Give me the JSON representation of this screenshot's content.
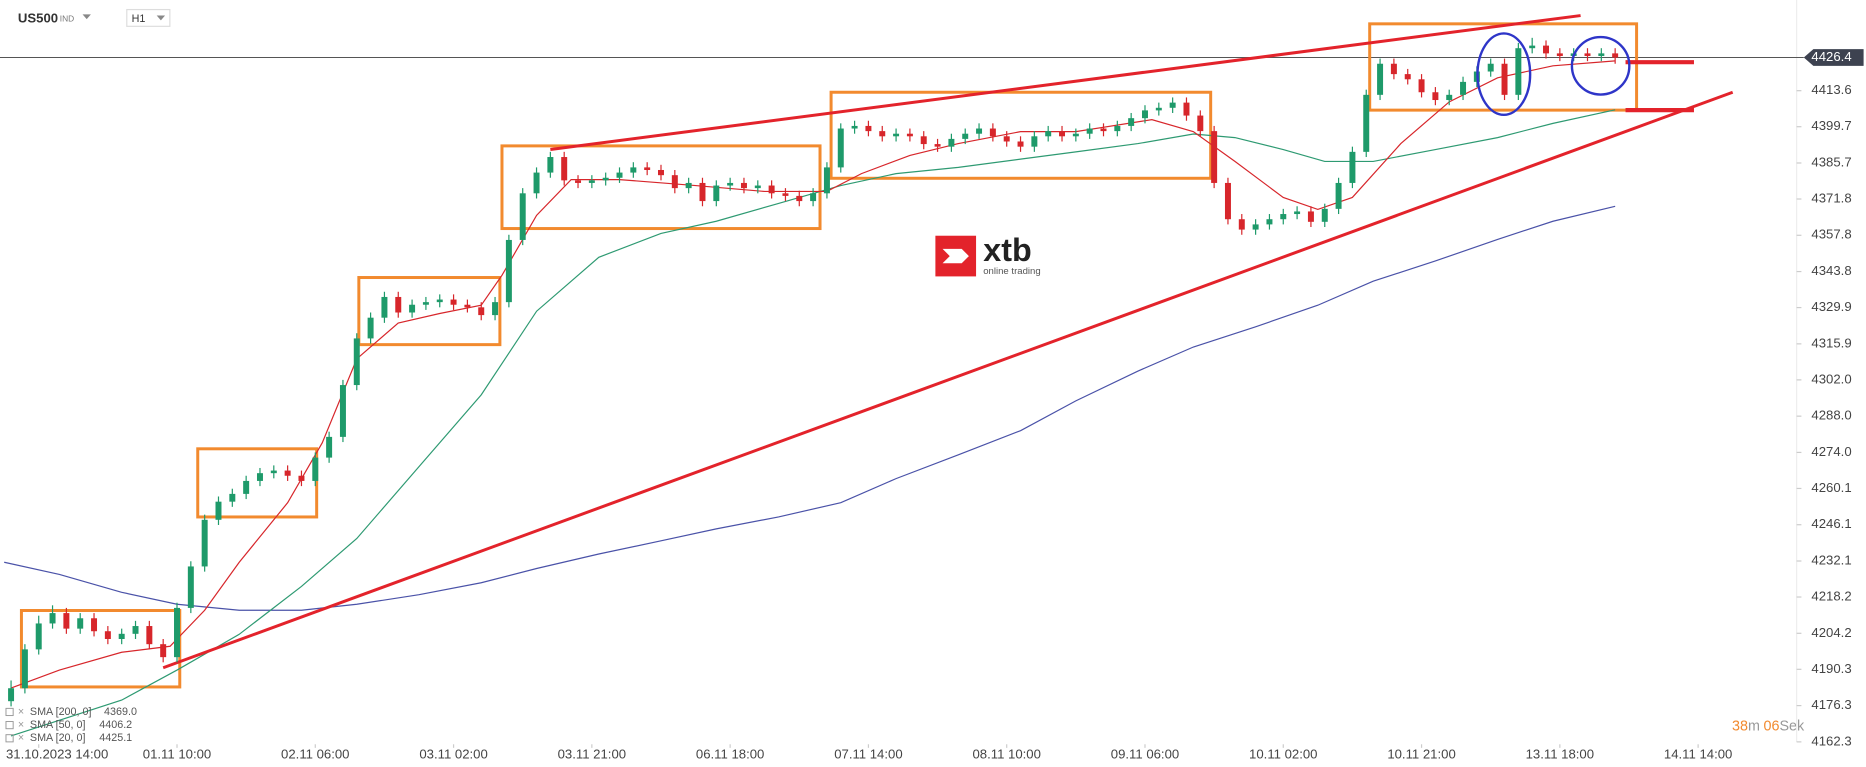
{
  "chart_data": {
    "type": "candlestick",
    "symbol": "US500",
    "market": "IND",
    "interval": "H1",
    "watermark": {
      "brand": "xtb",
      "tagline": "online trading"
    },
    "timer": [
      "38",
      "m",
      "06",
      "Sek"
    ],
    "xlim": [
      -5.6,
      253.9
    ],
    "ylim": [
      4162.3,
      4448.6
    ],
    "xticks": [
      {
        "value": 0,
        "label": "31.10.2023 14:00"
      },
      {
        "value": 20,
        "label": "01.11 10:00"
      },
      {
        "value": 40,
        "label": "02.11 06:00"
      },
      {
        "value": 60,
        "label": "03.11 02:00"
      },
      {
        "value": 80,
        "label": "03.11 21:00"
      },
      {
        "value": 100,
        "label": "06.11 18:00"
      },
      {
        "value": 120,
        "label": "07.11 14:00"
      },
      {
        "value": 140,
        "label": "08.11 10:00"
      },
      {
        "value": 160,
        "label": "09.11 06:00"
      },
      {
        "value": 180,
        "label": "10.11 02:00"
      },
      {
        "value": 200,
        "label": "10.11 21:00"
      },
      {
        "value": 220,
        "label": "13.11 18:00"
      },
      {
        "value": 240,
        "label": "14.11 14:00"
      }
    ],
    "yticks": [
      4162.3,
      4176.3,
      4190.3,
      4204.2,
      4218.2,
      4232.1,
      4246.1,
      4260.1,
      {
        "value": 4274,
        "label": "4274.0"
      },
      {
        "value": 4288,
        "label": "4288.0"
      },
      {
        "value": 4302,
        "label": "4302.0"
      },
      4315.9,
      4329.9,
      4343.8,
      4357.8,
      4371.8,
      4385.7,
      4399.7,
      4413.6
    ],
    "price_line": 4426.4,
    "up_color": "#1e9a6a",
    "down_color": "#d7262b",
    "candles": {
      "x": [
        -4,
        -2,
        0,
        2,
        4,
        6,
        8,
        10,
        12,
        14,
        16,
        18,
        20,
        22,
        24,
        26,
        28,
        30,
        32,
        34,
        36,
        38,
        40,
        42,
        44,
        46,
        48,
        50,
        52,
        54,
        56,
        58,
        60,
        62,
        64,
        66,
        68,
        70,
        72,
        74,
        76,
        78,
        80,
        82,
        84,
        86,
        88,
        90,
        92,
        94,
        96,
        98,
        100,
        102,
        104,
        106,
        108,
        110,
        112,
        114,
        116,
        118,
        120,
        122,
        124,
        126,
        128,
        130,
        132,
        134,
        136,
        138,
        140,
        142,
        144,
        146,
        148,
        150,
        152,
        154,
        156,
        158,
        160,
        162,
        164,
        166,
        168,
        170,
        172,
        174,
        176,
        178,
        180,
        182,
        184,
        186,
        188,
        190,
        192,
        194,
        196,
        198,
        200,
        202,
        204,
        206,
        208,
        210,
        212,
        214,
        216,
        218,
        220,
        222,
        224,
        226,
        228
      ],
      "ohlc": [
        [
          4178,
          4186,
          4176,
          4183
        ],
        [
          4183,
          4200,
          4181,
          4198
        ],
        [
          4198,
          4211,
          4196,
          4208
        ],
        [
          4208,
          4215,
          4206,
          4212
        ],
        [
          4212,
          4214,
          4204,
          4206
        ],
        [
          4206,
          4212,
          4204,
          4210
        ],
        [
          4210,
          4212,
          4203,
          4205
        ],
        [
          4205,
          4207,
          4200,
          4202
        ],
        [
          4202,
          4206,
          4200,
          4204
        ],
        [
          4204,
          4209,
          4202,
          4207
        ],
        [
          4207,
          4209,
          4198,
          4200
        ],
        [
          4200,
          4202,
          4193,
          4195
        ],
        [
          4195,
          4216,
          4193,
          4214
        ],
        [
          4214,
          4232,
          4212,
          4230
        ],
        [
          4230,
          4250,
          4228,
          4248
        ],
        [
          4248,
          4257,
          4246,
          4255
        ],
        [
          4255,
          4260,
          4253,
          4258
        ],
        [
          4258,
          4265,
          4256,
          4263
        ],
        [
          4263,
          4268,
          4261,
          4266
        ],
        [
          4266,
          4269,
          4264,
          4267
        ],
        [
          4267,
          4269,
          4263,
          4265
        ],
        [
          4265,
          4267,
          4261,
          4263
        ],
        [
          4263,
          4274,
          4261,
          4272
        ],
        [
          4272,
          4282,
          4270,
          4280
        ],
        [
          4280,
          4302,
          4278,
          4300
        ],
        [
          4300,
          4320,
          4298,
          4318
        ],
        [
          4318,
          4328,
          4316,
          4326
        ],
        [
          4326,
          4336,
          4324,
          4334
        ],
        [
          4334,
          4336,
          4326,
          4328
        ],
        [
          4328,
          4333,
          4326,
          4331
        ],
        [
          4331,
          4334,
          4329,
          4332
        ],
        [
          4332,
          4335,
          4330,
          4333
        ],
        [
          4333,
          4335,
          4329,
          4331
        ],
        [
          4331,
          4333,
          4328,
          4330
        ],
        [
          4330,
          4332,
          4325,
          4327
        ],
        [
          4327,
          4334,
          4325,
          4332
        ],
        [
          4332,
          4358,
          4330,
          4356
        ],
        [
          4356,
          4376,
          4354,
          4374
        ],
        [
          4374,
          4384,
          4372,
          4382
        ],
        [
          4382,
          4390,
          4380,
          4388
        ],
        [
          4388,
          4390,
          4377,
          4379
        ],
        [
          4379,
          4381,
          4376,
          4378
        ],
        [
          4378,
          4381,
          4376,
          4379
        ],
        [
          4379,
          4382,
          4377,
          4380
        ],
        [
          4380,
          4384,
          4378,
          4382
        ],
        [
          4382,
          4386,
          4380,
          4384
        ],
        [
          4384,
          4386,
          4381,
          4383
        ],
        [
          4383,
          4385,
          4379,
          4381
        ],
        [
          4381,
          4383,
          4374,
          4376
        ],
        [
          4376,
          4380,
          4374,
          4378
        ],
        [
          4378,
          4380,
          4369,
          4371
        ],
        [
          4371,
          4379,
          4369,
          4377
        ],
        [
          4377,
          4380,
          4375,
          4378
        ],
        [
          4378,
          4380,
          4374,
          4376
        ],
        [
          4376,
          4379,
          4374,
          4377
        ],
        [
          4377,
          4379,
          4372,
          4374
        ],
        [
          4374,
          4376,
          4371,
          4373
        ],
        [
          4373,
          4375,
          4369,
          4371
        ],
        [
          4371,
          4376,
          4369,
          4374
        ],
        [
          4374,
          4386,
          4372,
          4384
        ],
        [
          4384,
          4401,
          4382,
          4399
        ],
        [
          4399,
          4402,
          4397,
          4400
        ],
        [
          4400,
          4402,
          4396,
          4398
        ],
        [
          4398,
          4400,
          4394,
          4396
        ],
        [
          4396,
          4399,
          4394,
          4397
        ],
        [
          4397,
          4399,
          4394,
          4396
        ],
        [
          4396,
          4398,
          4391,
          4393
        ],
        [
          4393,
          4395,
          4390,
          4392
        ],
        [
          4392,
          4397,
          4390,
          4395
        ],
        [
          4395,
          4399,
          4393,
          4397
        ],
        [
          4397,
          4401,
          4395,
          4399
        ],
        [
          4399,
          4401,
          4394,
          4396
        ],
        [
          4396,
          4398,
          4392,
          4394
        ],
        [
          4394,
          4396,
          4390,
          4392
        ],
        [
          4392,
          4398,
          4390,
          4396
        ],
        [
          4396,
          4400,
          4394,
          4398
        ],
        [
          4398,
          4400,
          4394,
          4396
        ],
        [
          4396,
          4399,
          4394,
          4397
        ],
        [
          4397,
          4401,
          4395,
          4399
        ],
        [
          4399,
          4401,
          4396,
          4398
        ],
        [
          4398,
          4402,
          4396,
          4400
        ],
        [
          4400,
          4405,
          4398,
          4403
        ],
        [
          4403,
          4408,
          4401,
          4406
        ],
        [
          4406,
          4409,
          4404,
          4407
        ],
        [
          4407,
          4411,
          4405,
          4409
        ],
        [
          4409,
          4411,
          4402,
          4404
        ],
        [
          4404,
          4406,
          4396,
          4398
        ],
        [
          4398,
          4400,
          4376,
          4378
        ],
        [
          4378,
          4380,
          4362,
          4364
        ],
        [
          4364,
          4366,
          4358,
          4360
        ],
        [
          4360,
          4364,
          4358,
          4362
        ],
        [
          4362,
          4366,
          4360,
          4364
        ],
        [
          4364,
          4368,
          4362,
          4366
        ],
        [
          4366,
          4369,
          4364,
          4367
        ],
        [
          4367,
          4369,
          4361,
          4363
        ],
        [
          4363,
          4370,
          4361,
          4368
        ],
        [
          4368,
          4380,
          4366,
          4378
        ],
        [
          4378,
          4392,
          4376,
          4390
        ],
        [
          4390,
          4414,
          4388,
          4412
        ],
        [
          4412,
          4426,
          4410,
          4424
        ],
        [
          4424,
          4426,
          4418,
          4420
        ],
        [
          4420,
          4422,
          4416,
          4418
        ],
        [
          4418,
          4420,
          4411,
          4413
        ],
        [
          4413,
          4415,
          4408,
          4410
        ],
        [
          4410,
          4414,
          4408,
          4412
        ],
        [
          4412,
          4419,
          4410,
          4417
        ],
        [
          4417,
          4423,
          4415,
          4421
        ],
        [
          4421,
          4426,
          4419,
          4424
        ],
        [
          4424,
          4426,
          4410,
          4412
        ],
        [
          4412,
          4432,
          4410,
          4430
        ],
        [
          4430,
          4434,
          4428,
          4431
        ],
        [
          4431,
          4433,
          4426,
          4428
        ],
        [
          4428,
          4430,
          4425,
          4427
        ],
        [
          4427,
          4430,
          4425,
          4428
        ],
        [
          4428,
          4430,
          4425,
          4427
        ],
        [
          4427,
          4430,
          4425,
          4428
        ],
        [
          4428,
          4430,
          4424,
          4426.4
        ]
      ]
    },
    "series": [
      {
        "name": "SMA [200, 0]",
        "color": "#4a52a8",
        "last_label": "4369.0",
        "x": [
          -5,
          3,
          12,
          20,
          29,
          38,
          46,
          55,
          64,
          72,
          81,
          90,
          98,
          107,
          116,
          124,
          133,
          142,
          150,
          159,
          167,
          176,
          185,
          193,
          202,
          211,
          219,
          228
        ],
        "values": [
          4231.6,
          4226.9,
          4220.0,
          4215.4,
          4213.1,
          4213.1,
          4215.4,
          4219.1,
          4223.7,
          4229.2,
          4234.8,
          4239.9,
          4244.5,
          4249.1,
          4254.6,
          4263.9,
          4273.1,
          4282.4,
          4293.9,
          4305.4,
          4314.7,
          4322.5,
          4330.8,
          4340.1,
          4347.9,
          4356.2,
          4363.2,
          4369.0
        ]
      },
      {
        "name": "SMA [50, 0]",
        "color": "#2e9a72",
        "last_label": "4406.2",
        "x": [
          -4,
          12,
          20,
          29,
          38,
          46,
          55,
          64,
          72,
          81,
          90,
          98,
          107,
          116,
          124,
          133,
          142,
          150,
          159,
          167,
          173,
          180,
          186,
          193,
          202,
          211,
          219,
          228
        ],
        "values": [
          4164.6,
          4178.4,
          4190.0,
          4203.8,
          4222.3,
          4240.8,
          4268.5,
          4296.2,
          4328.5,
          4349.3,
          4358.5,
          4363.2,
          4370.1,
          4377.0,
          4381.6,
          4384.0,
          4387.2,
          4390.0,
          4393.2,
          4396.9,
          4395.5,
          4390.9,
          4386.3,
          4386.3,
          4390.9,
          4395.5,
          4401.0,
          4406.2
        ]
      },
      {
        "name": "SMA [20, 0]",
        "color": "#d7262b",
        "last_label": "4425.1",
        "x": [
          -4,
          3,
          12,
          19,
          24,
          29,
          36,
          41,
          46,
          52,
          58,
          64,
          67,
          72,
          77,
          84,
          95,
          105,
          114,
          119,
          126,
          133,
          142,
          150,
          161,
          167,
          173,
          180,
          185,
          190,
          197,
          204,
          211,
          219,
          228
        ],
        "values": [
          4183.1,
          4190.0,
          4196.9,
          4199.2,
          4213.1,
          4231.6,
          4254.6,
          4277.7,
          4310.1,
          4323.9,
          4327.6,
          4330.8,
          4342.4,
          4365.5,
          4379.3,
          4379.3,
          4377.0,
          4374.7,
          4374.7,
          4381.6,
          4388.6,
          4393.2,
          4397.8,
          4397.8,
          4402.4,
          4397.8,
          4386.3,
          4372.4,
          4367.8,
          4372.4,
          4393.2,
          4409.3,
          4418.6,
          4423.2,
          4425.1
        ]
      }
    ],
    "trendlines": {
      "color": "#e3232b",
      "lines": [
        {
          "x": [
            74,
            223
          ],
          "values": [
            4390.9,
            4442.6
          ]
        },
        {
          "x": [
            18,
            245
          ],
          "values": [
            4190.9,
            4413.0
          ]
        },
        {
          "x": [
            229.5,
            239.4
          ],
          "values": [
            4424.6,
            4424.6
          ]
        },
        {
          "x": [
            229.5,
            239.4
          ],
          "values": [
            4406.1,
            4406.1
          ]
        }
      ]
    },
    "boxes": {
      "color": "#f28a2e",
      "items": [
        {
          "x": [
            -2.5,
            20.4
          ],
          "values": [
            4213.0,
            4183.5
          ]
        },
        {
          "x": [
            23,
            40.2
          ],
          "values": [
            4275.4,
            4249.1
          ]
        },
        {
          "x": [
            46.3,
            66.7
          ],
          "values": [
            4341.5,
            4315.6
          ]
        },
        {
          "x": [
            67,
            113
          ],
          "values": [
            4392.3,
            4360.4
          ]
        },
        {
          "x": [
            114.6,
            169.5
          ],
          "values": [
            4413.0,
            4379.8
          ]
        },
        {
          "x": [
            192.5,
            231.1
          ],
          "values": [
            4439.4,
            4406.1
          ]
        }
      ]
    },
    "circles": {
      "color": "#2e35c8",
      "items": [
        {
          "x": 211.9,
          "value": 4420.0
        },
        {
          "x": 225.9,
          "value": 4423.2
        }
      ]
    }
  }
}
